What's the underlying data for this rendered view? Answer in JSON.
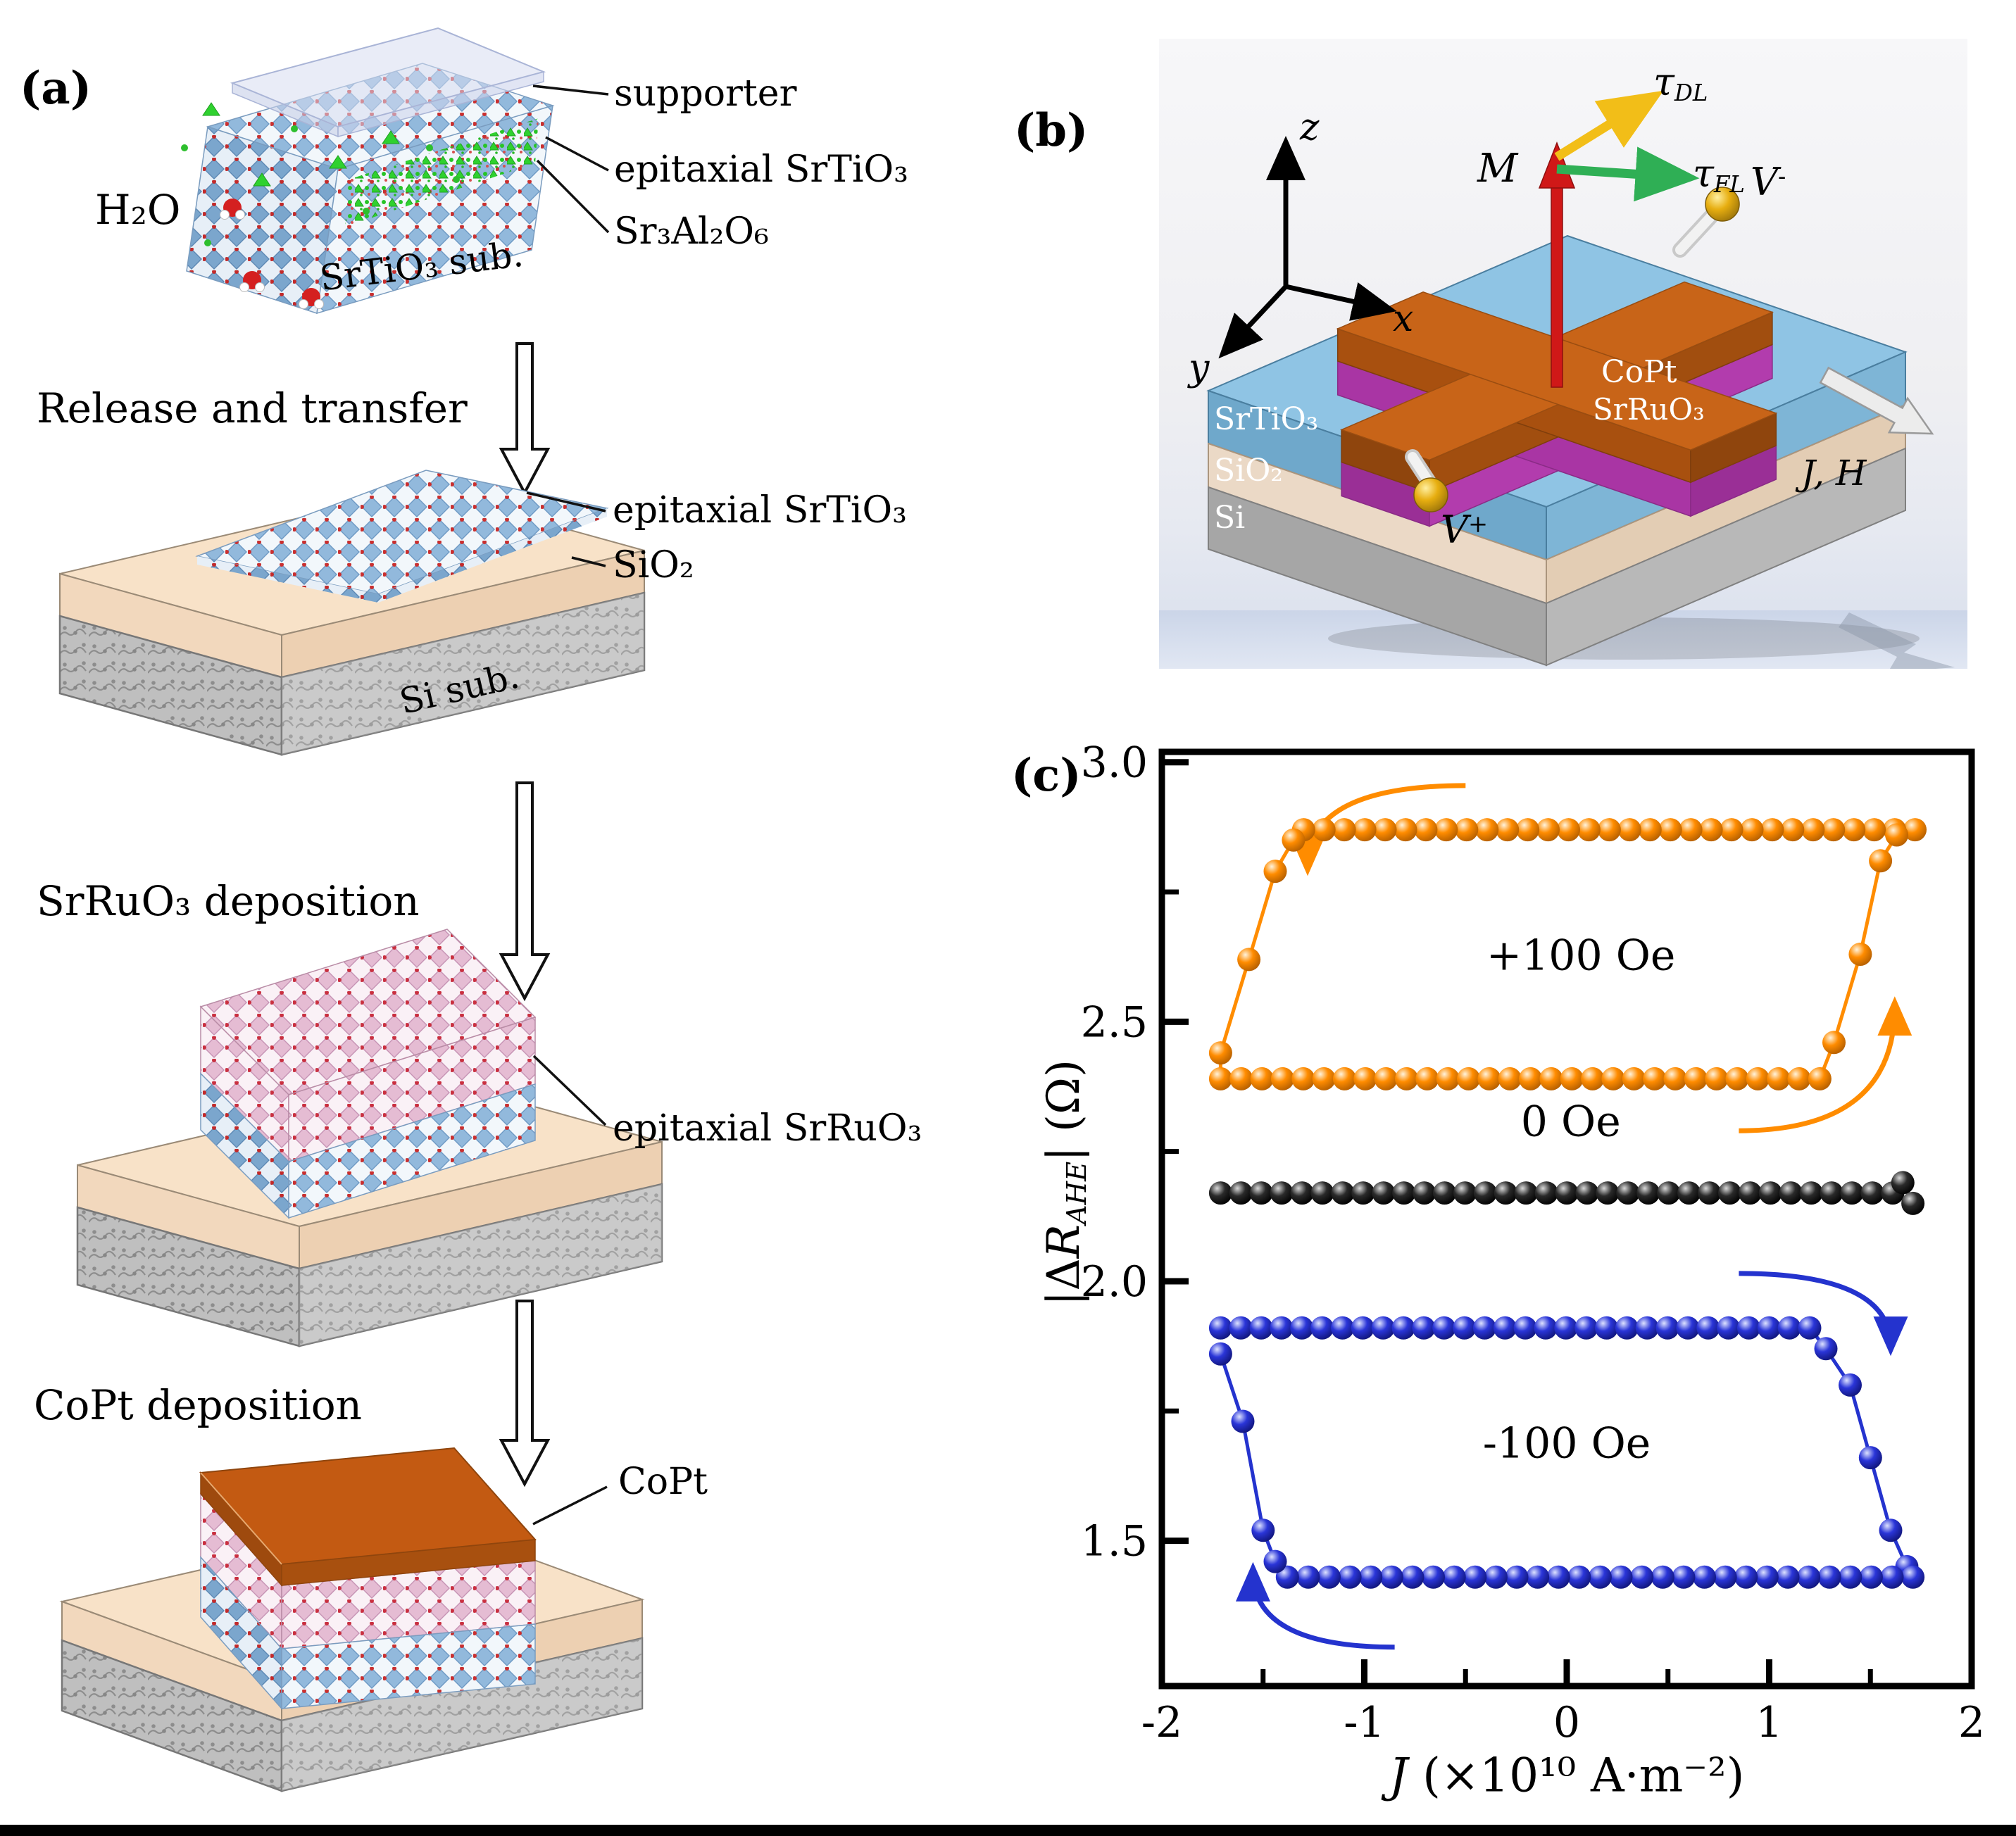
{
  "panel_a": {
    "label": "(a)",
    "h2o": "H₂O",
    "srtio3_substrate": "SrTiO₃ sub.",
    "callout_supporter": "supporter",
    "callout_epitaxial_srtio3": "epitaxial SrTiO₃",
    "callout_sr3al2o6": "Sr₃Al₂O₆",
    "step_release": "Release and transfer",
    "callout_epitaxial_srtio3_2": "epitaxial SrTiO₃",
    "callout_sio2": "SiO₂",
    "si_substrate": "Si sub.",
    "step_srruo3": "SrRuO₃ deposition",
    "callout_epitaxial_srruo3": "epitaxial SrRuO₃",
    "step_copt": "CoPt deposition",
    "callout_copt": "CoPt"
  },
  "panel_b": {
    "label": "(b)",
    "axis_x": "x",
    "axis_y": "y",
    "axis_z": "z",
    "magnetization": "M",
    "tau": "τ",
    "tau_dl_sub": "DL",
    "tau_fl_sub": "FL",
    "v": "V",
    "v_plus_sign": "+",
    "v_minus_sign": "-",
    "current_field": "J, H",
    "layer_copt": "CoPt",
    "layer_srruo3": "SrRuO₃",
    "layer_srtio3": "SrTiO₃",
    "layer_sio2": "SiO₂",
    "layer_si": "Si"
  },
  "panel_c": {
    "label": "(c)",
    "ylabel_bar1": "|Δ",
    "ylabel_r": "R",
    "ylabel_sub": "AHE",
    "ylabel_rest": "| (Ω)",
    "xlabel_j": "J",
    "xlabel_rest": " (×10¹⁰ A·m⁻²)"
  },
  "chart_data": {
    "type": "line",
    "title": "",
    "xlabel": "J (×10^10 A·m^-2)",
    "ylabel": "|ΔR_AHE| (Ω)",
    "xlim": [
      -2,
      2
    ],
    "ylim": [
      1.22,
      3.02
    ],
    "x_ticks": [
      -2,
      -1,
      0,
      1,
      2
    ],
    "x_tick_labels": [
      "-2",
      "-1",
      "0",
      "1",
      "2"
    ],
    "x_minor_ticks": [
      -1.5,
      -0.5,
      0.5,
      1.5
    ],
    "y_ticks": [
      1.5,
      2.0,
      2.5,
      3.0
    ],
    "y_tick_labels": [
      "1.5",
      "2.0",
      "2.5",
      "3.0"
    ],
    "y_minor_ticks": [
      1.75,
      2.25,
      2.75
    ],
    "grid": false,
    "legend_position": "inline-annotations",
    "series": [
      {
        "name": "+100 Oe",
        "color": "#FF8C00",
        "dark": "#B35E00",
        "label_pos": [
          0.07,
          2.6
        ],
        "segments": [
          {
            "type": "run",
            "x0": 1.72,
            "x1": -1.3,
            "n": 31,
            "y": 2.87
          },
          {
            "type": "points",
            "pts": [
              [
                -1.35,
                2.85
              ],
              [
                -1.44,
                2.79
              ],
              [
                -1.57,
                2.62
              ],
              [
                -1.71,
                2.44
              ]
            ]
          },
          {
            "type": "run",
            "x0": -1.71,
            "x1": 1.25,
            "n": 30,
            "y": 2.39
          },
          {
            "type": "points",
            "pts": [
              [
                1.32,
                2.46
              ],
              [
                1.45,
                2.63
              ],
              [
                1.55,
                2.81
              ],
              [
                1.63,
                2.86
              ]
            ]
          }
        ],
        "arrows": [
          {
            "from": [
              -0.5,
              2.955
            ],
            "to": [
              -1.28,
              2.8
            ]
          },
          {
            "from": [
              0.85,
              2.29
            ],
            "to": [
              1.62,
              2.53
            ]
          }
        ]
      },
      {
        "name": "0 Oe",
        "color": "#000000",
        "dark": "#000000",
        "label_pos": [
          0.02,
          2.28
        ],
        "segments": [
          {
            "type": "run",
            "x0": -1.71,
            "x1": 1.61,
            "n": 34,
            "y": 2.17
          },
          {
            "type": "points",
            "pts": [
              [
                1.66,
                2.19
              ],
              [
                1.71,
                2.15
              ]
            ]
          }
        ],
        "arrows": []
      },
      {
        "name": "-100 Oe",
        "color": "#2433CE",
        "dark": "#101579",
        "label_pos": [
          0.0,
          1.66
        ],
        "segments": [
          {
            "type": "run",
            "x0": -1.71,
            "x1": 1.2,
            "n": 30,
            "y": 1.91
          },
          {
            "type": "points",
            "pts": [
              [
                1.28,
                1.87
              ],
              [
                1.4,
                1.8
              ],
              [
                1.5,
                1.66
              ],
              [
                1.6,
                1.52
              ],
              [
                1.68,
                1.45
              ]
            ]
          },
          {
            "type": "run",
            "x0": 1.71,
            "x1": -1.38,
            "n": 31,
            "y": 1.43
          },
          {
            "type": "points",
            "pts": [
              [
                -1.44,
                1.46
              ],
              [
                -1.5,
                1.52
              ],
              [
                -1.6,
                1.73
              ],
              [
                -1.71,
                1.86
              ]
            ]
          }
        ],
        "arrows": [
          {
            "from": [
              0.85,
              2.015
            ],
            "to": [
              1.6,
              1.875
            ]
          },
          {
            "from": [
              -0.85,
              1.295
            ],
            "to": [
              -1.55,
              1.44
            ]
          }
        ]
      }
    ]
  }
}
